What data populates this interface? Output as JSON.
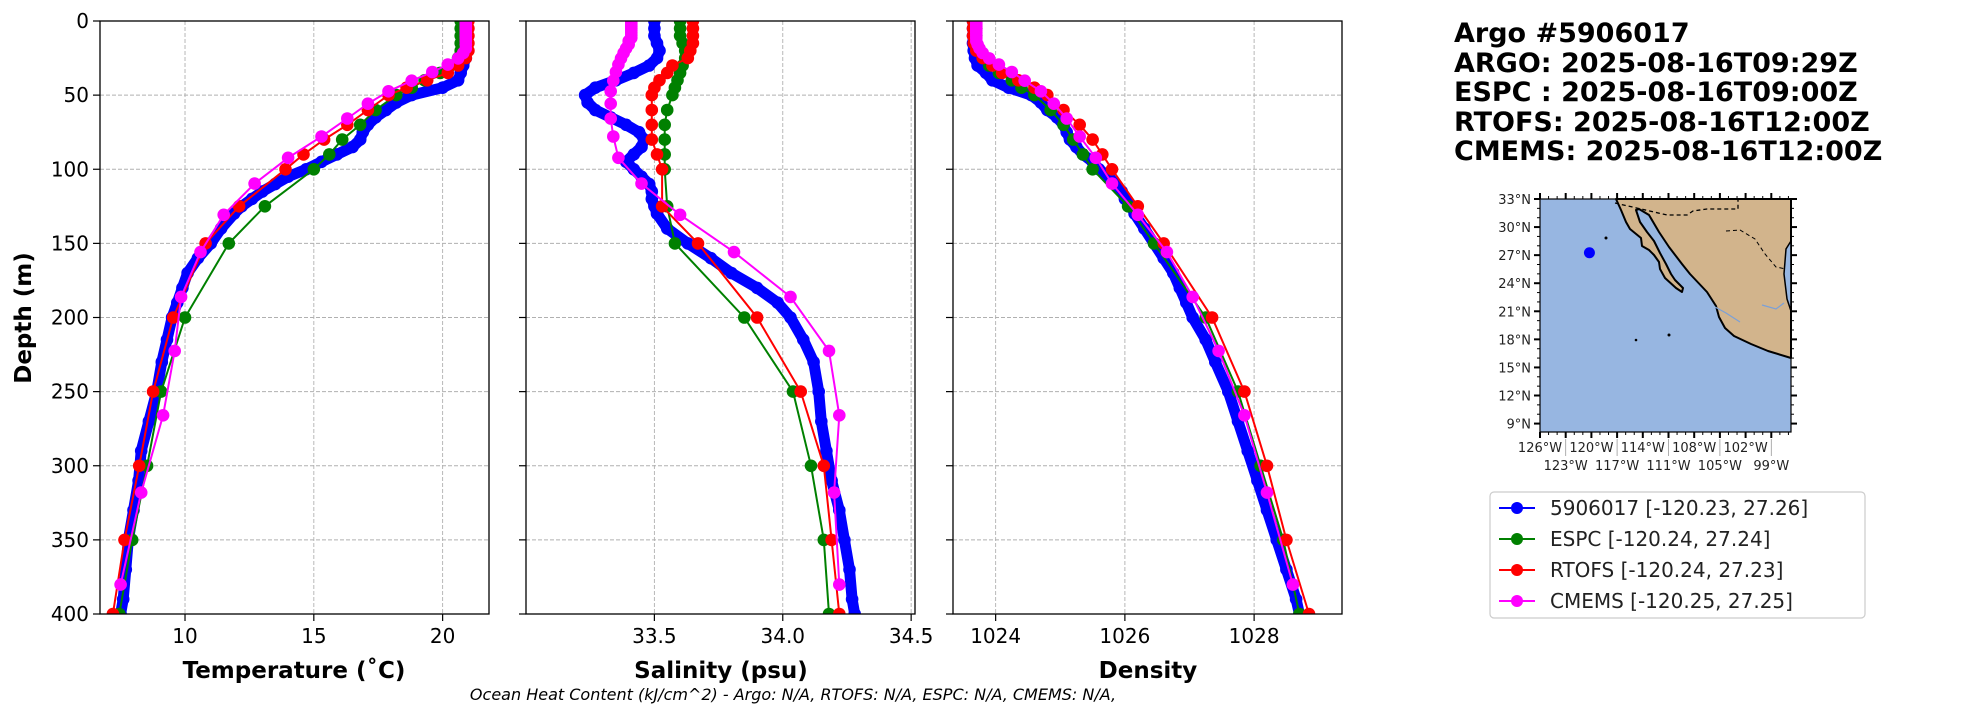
{
  "title_lines": [
    "Argo #5906017",
    "ARGO: 2025-08-16T09:29Z",
    "ESPC : 2025-08-16T09:00Z",
    "RTOFS: 2025-08-16T12:00Z",
    "CMEMS: 2025-08-16T12:00Z"
  ],
  "footer": "Ocean Heat Content (kJ/cm^2) - Argo: N/A,  RTOFS: N/A,  ESPC: N/A,  CMEMS: N/A,",
  "map": {
    "lat_labels": [
      "33°N",
      "30°N",
      "27°N",
      "24°N",
      "21°N",
      "18°N",
      "15°N",
      "12°N",
      "9°N"
    ],
    "lat_values": [
      33,
      30,
      27,
      24,
      21,
      18,
      15,
      12,
      9
    ],
    "lon_labels": [
      "126°W",
      "123°W",
      "120°W",
      "117°W",
      "114°W",
      "111°W",
      "108°W",
      "105°W",
      "102°W",
      "99°W"
    ],
    "lon_values": [
      -126,
      -123,
      -120,
      -117,
      -114,
      -111,
      -108,
      -105,
      -102,
      -99
    ],
    "lon_range": [
      -126,
      -96.7
    ],
    "lat_range": [
      8.1,
      33
    ],
    "float_position": {
      "lon": -120.23,
      "lat": 27.26
    },
    "ocean_color": "#97b6e1",
    "land_color": "#d2b48c",
    "marker_color": "#0000ff"
  },
  "chart_data": {
    "type": "line",
    "ylabel": "Depth (m)",
    "ylim": [
      400,
      0
    ],
    "yticks": [
      0,
      50,
      100,
      150,
      200,
      250,
      300,
      350,
      400
    ],
    "grid": true,
    "legend_placement": "right",
    "panels": [
      {
        "key": "temperature",
        "xlabel": "Temperature (˚C)",
        "xlim": [
          6.7,
          21.8
        ],
        "xticks": [
          10,
          15,
          20
        ]
      },
      {
        "key": "salinity",
        "xlabel": "Salinity (psu)",
        "xlim": [
          33.0,
          34.515
        ],
        "xticks": [
          33.5,
          34.0,
          34.5
        ],
        "xtick_labels": [
          "33.5",
          "34.0",
          "34.5"
        ]
      },
      {
        "key": "density",
        "xlabel": "Density",
        "xlim": [
          1023.34,
          1029.36
        ],
        "xticks": [
          1024,
          1026,
          1028
        ]
      }
    ],
    "series": [
      {
        "name": "5906017 [-120.23, 27.26]",
        "color": "#0000ff",
        "depth": [
          0,
          5,
          10,
          15,
          20,
          25,
          30,
          35,
          40,
          45,
          50,
          55,
          60,
          65,
          70,
          75,
          80,
          85,
          90,
          95,
          100,
          105,
          110,
          115,
          120,
          125,
          130,
          140,
          150,
          160,
          170,
          180,
          190,
          200,
          215,
          230,
          250,
          270,
          290,
          310,
          330,
          350,
          370,
          390,
          400
        ],
        "temperature": [
          20.9,
          20.9,
          20.9,
          20.9,
          20.9,
          20.9,
          20.8,
          20.7,
          20.6,
          20.0,
          18.8,
          18.2,
          17.8,
          17.4,
          17.1,
          16.9,
          16.8,
          16.5,
          15.9,
          15.3,
          14.7,
          14.0,
          13.5,
          13.0,
          12.6,
          12.2,
          11.9,
          11.4,
          11.0,
          10.5,
          10.1,
          9.9,
          9.7,
          9.5,
          9.3,
          9.1,
          8.9,
          8.6,
          8.3,
          8.2,
          8.0,
          7.8,
          7.7,
          7.6,
          7.5
        ],
        "salinity": [
          33.5,
          33.5,
          33.5,
          33.51,
          33.52,
          33.51,
          33.48,
          33.42,
          33.35,
          33.27,
          33.23,
          33.24,
          33.27,
          33.33,
          33.39,
          33.44,
          33.46,
          33.45,
          33.42,
          33.39,
          33.42,
          33.45,
          33.48,
          33.49,
          33.49,
          33.5,
          33.51,
          33.55,
          33.63,
          33.72,
          33.8,
          33.9,
          33.98,
          34.03,
          34.08,
          34.12,
          34.14,
          34.15,
          34.17,
          34.19,
          34.22,
          34.24,
          34.26,
          34.27,
          34.28
        ],
        "density": [
          1023.65,
          1023.65,
          1023.65,
          1023.65,
          1023.66,
          1023.68,
          1023.72,
          1023.85,
          1023.95,
          1024.2,
          1024.55,
          1024.7,
          1024.8,
          1024.95,
          1025.05,
          1025.1,
          1025.15,
          1025.25,
          1025.35,
          1025.5,
          1025.6,
          1025.75,
          1025.85,
          1025.95,
          1026.0,
          1026.1,
          1026.15,
          1026.3,
          1026.45,
          1026.6,
          1026.75,
          1026.85,
          1026.95,
          1027.05,
          1027.25,
          1027.4,
          1027.6,
          1027.75,
          1027.9,
          1028.05,
          1028.2,
          1028.35,
          1028.5,
          1028.65,
          1028.7
        ]
      },
      {
        "name": "ESPC [-120.24, 27.24]",
        "color": "#008000",
        "depth": [
          0,
          5,
          10,
          15,
          20,
          25,
          30,
          35,
          40,
          45,
          50,
          60,
          70,
          80,
          90,
          100,
          125,
          150,
          200,
          250,
          300,
          350,
          400
        ],
        "temperature": [
          20.7,
          20.7,
          20.7,
          20.7,
          20.7,
          20.6,
          20.3,
          19.9,
          19.3,
          18.8,
          18.2,
          17.4,
          16.8,
          16.1,
          15.6,
          15.0,
          13.1,
          11.7,
          10.0,
          9.07,
          8.53,
          7.95,
          7.45
        ],
        "salinity": [
          33.6,
          33.6,
          33.6,
          33.61,
          33.62,
          33.62,
          33.61,
          33.6,
          33.59,
          33.58,
          33.57,
          33.55,
          33.54,
          33.54,
          33.54,
          33.54,
          33.55,
          33.58,
          33.85,
          34.04,
          34.11,
          34.16,
          34.18
        ],
        "density": [
          1023.7,
          1023.7,
          1023.7,
          1023.7,
          1023.72,
          1023.8,
          1023.9,
          1024.05,
          1024.25,
          1024.4,
          1024.6,
          1024.85,
          1025.05,
          1025.2,
          1025.35,
          1025.5,
          1026.05,
          1026.45,
          1027.25,
          1027.75,
          1028.1,
          1028.45,
          1028.7
        ]
      },
      {
        "name": "RTOFS [-120.24, 27.23]",
        "color": "#ff0000",
        "depth": [
          0,
          5,
          10,
          15,
          20,
          25,
          30,
          35,
          40,
          45,
          50,
          60,
          70,
          80,
          90,
          100,
          125,
          150,
          200,
          250,
          300,
          350,
          400
        ],
        "temperature": [
          21.0,
          21.0,
          21.0,
          21.0,
          21.0,
          20.9,
          20.6,
          20.2,
          19.4,
          18.6,
          17.9,
          17.1,
          16.3,
          15.4,
          14.6,
          13.9,
          12.1,
          10.8,
          9.54,
          8.76,
          8.22,
          7.65,
          7.2
        ],
        "salinity": [
          33.65,
          33.65,
          33.65,
          33.65,
          33.64,
          33.63,
          33.57,
          33.55,
          33.52,
          33.5,
          33.49,
          33.49,
          33.49,
          33.49,
          33.51,
          33.53,
          33.53,
          33.67,
          33.9,
          34.07,
          34.16,
          34.19,
          34.22
        ],
        "density": [
          1023.65,
          1023.65,
          1023.65,
          1023.66,
          1023.7,
          1023.8,
          1023.95,
          1024.1,
          1024.35,
          1024.6,
          1024.8,
          1025.05,
          1025.3,
          1025.5,
          1025.65,
          1025.8,
          1026.2,
          1026.6,
          1027.35,
          1027.85,
          1028.2,
          1028.5,
          1028.85
        ]
      },
      {
        "name": "CMEMS [-120.25, 27.25]",
        "color": "#ff00ff",
        "depth": [
          0.5,
          1.5,
          2.6,
          3.8,
          5.1,
          6.4,
          7.9,
          9.6,
          11.4,
          13.5,
          15.8,
          18.5,
          21.6,
          25.2,
          29.4,
          34.4,
          40.3,
          47.4,
          55.8,
          65.8,
          77.9,
          92.3,
          109.7,
          130.7,
          155.9,
          186.1,
          222.5,
          266.0,
          318.1,
          380.2
        ],
        "temperature": [
          20.9,
          20.9,
          20.9,
          20.9,
          20.9,
          20.9,
          20.9,
          20.9,
          20.9,
          20.9,
          20.9,
          20.9,
          20.8,
          20.6,
          20.2,
          19.6,
          18.8,
          17.9,
          17.1,
          16.3,
          15.3,
          14.0,
          12.7,
          11.5,
          10.6,
          9.85,
          9.6,
          9.15,
          8.3,
          7.5
        ],
        "salinity": [
          33.41,
          33.41,
          33.41,
          33.41,
          33.41,
          33.41,
          33.41,
          33.41,
          33.41,
          33.4,
          33.4,
          33.39,
          33.38,
          33.37,
          33.36,
          33.35,
          33.34,
          33.33,
          33.33,
          33.33,
          33.34,
          33.36,
          33.45,
          33.6,
          33.81,
          34.03,
          34.18,
          34.22,
          34.2,
          34.22
        ],
        "density": [
          1023.7,
          1023.7,
          1023.7,
          1023.7,
          1023.7,
          1023.7,
          1023.7,
          1023.7,
          1023.7,
          1023.7,
          1023.72,
          1023.75,
          1023.8,
          1023.9,
          1024.05,
          1024.25,
          1024.45,
          1024.7,
          1024.9,
          1025.1,
          1025.3,
          1025.55,
          1025.8,
          1026.2,
          1026.65,
          1027.05,
          1027.45,
          1027.85,
          1028.2,
          1028.6
        ]
      }
    ]
  }
}
